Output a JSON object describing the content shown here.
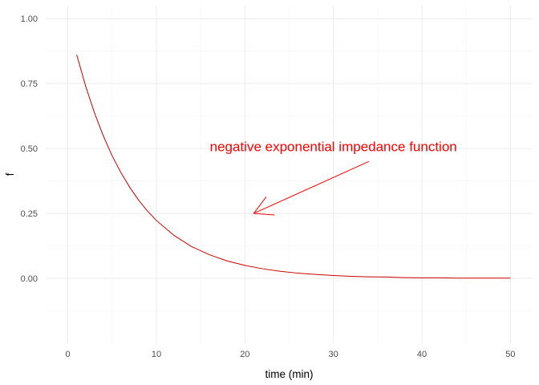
{
  "chart_data": {
    "type": "line",
    "title": "",
    "xlabel": "time (min)",
    "ylabel": "f",
    "xlim": [
      -2.5,
      52.5
    ],
    "ylim": [
      -0.25,
      1.05
    ],
    "x_ticks": [
      0,
      10,
      20,
      30,
      40,
      50
    ],
    "x_tick_labels": [
      "0",
      "10",
      "20",
      "30",
      "40",
      "50"
    ],
    "y_ticks": [
      0,
      0.25,
      0.5,
      0.75,
      1.0
    ],
    "y_tick_labels": [
      "0.00",
      "0.25",
      "0.50",
      "0.75",
      "1.00"
    ],
    "grid": true,
    "series": [
      {
        "color": "#cc0000",
        "x": [
          1,
          2,
          3,
          4,
          5,
          6,
          7,
          8,
          9,
          10,
          12,
          14,
          16,
          18,
          20,
          22,
          24,
          26,
          28,
          30,
          32,
          34,
          36,
          38,
          40,
          42,
          44,
          46,
          48,
          50
        ],
        "y": [
          0.861,
          0.741,
          0.638,
          0.549,
          0.472,
          0.407,
          0.35,
          0.301,
          0.259,
          0.223,
          0.165,
          0.122,
          0.091,
          0.067,
          0.05,
          0.037,
          0.027,
          0.02,
          0.015,
          0.011,
          0.008,
          0.006,
          0.005,
          0.003,
          0.002,
          0.002,
          0.001,
          0.001,
          0.001,
          0.001
        ]
      }
    ],
    "annotations": [
      {
        "text": "negative exponential impedance function",
        "color": "#ff0000",
        "x": 30,
        "y": 0.49,
        "arrow_from": [
          34,
          0.45
        ],
        "arrow_to": [
          21,
          0.25
        ]
      }
    ]
  }
}
